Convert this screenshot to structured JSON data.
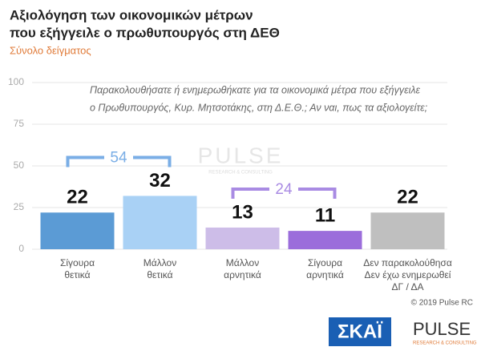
{
  "chart_data": {
    "type": "bar",
    "title": [
      "Αξιολόγηση των οικονομικών μέτρων",
      "που εξήγγειλε ο πρωθυπουργός στη ΔΕΘ"
    ],
    "subtitle": "Σύνολο δείγματος",
    "question": [
      "Παρακολουθήσατε ή ενημερωθήκατε για τα οικονομικά μέτρα που εξήγγειλε",
      "ο Πρωθυπουργός, Κυρ. Μητσοτάκης, στη Δ.Ε.Θ.; Αν ναι, πως τα αξιολογείτε;"
    ],
    "categories": [
      [
        "Σίγουρα",
        "θετικά"
      ],
      [
        "Μάλλον",
        "θετικά"
      ],
      [
        "Μάλλον",
        "αρνητικά"
      ],
      [
        "Σίγουρα",
        "αρνητικά"
      ],
      [
        "Δεν παρακολούθησα",
        "Δεν έχω ενημερωθεί",
        "ΔΓ / ΔΑ"
      ]
    ],
    "values": [
      22,
      32,
      13,
      11,
      22
    ],
    "colors": [
      "#5b9bd5",
      "#a9d1f5",
      "#cdbde8",
      "#9b6ddb",
      "#bfbfbf"
    ],
    "ylim": [
      0,
      100
    ],
    "yticks": [
      0,
      25,
      50,
      75,
      100
    ],
    "grid": true,
    "groups": [
      {
        "value": 54,
        "span": [
          0,
          1
        ],
        "color": "#7aaee6"
      },
      {
        "value": 24,
        "span": [
          2,
          3
        ],
        "color": "#a98be3"
      }
    ],
    "watermark": [
      "PULSE",
      "RESEARCH & CONSULTING"
    ],
    "copyright": "© 2019 Pulse RC",
    "logos": [
      "ΣΚΑΪ",
      "PULSE",
      "RESEARCH & CONSULTING"
    ]
  }
}
